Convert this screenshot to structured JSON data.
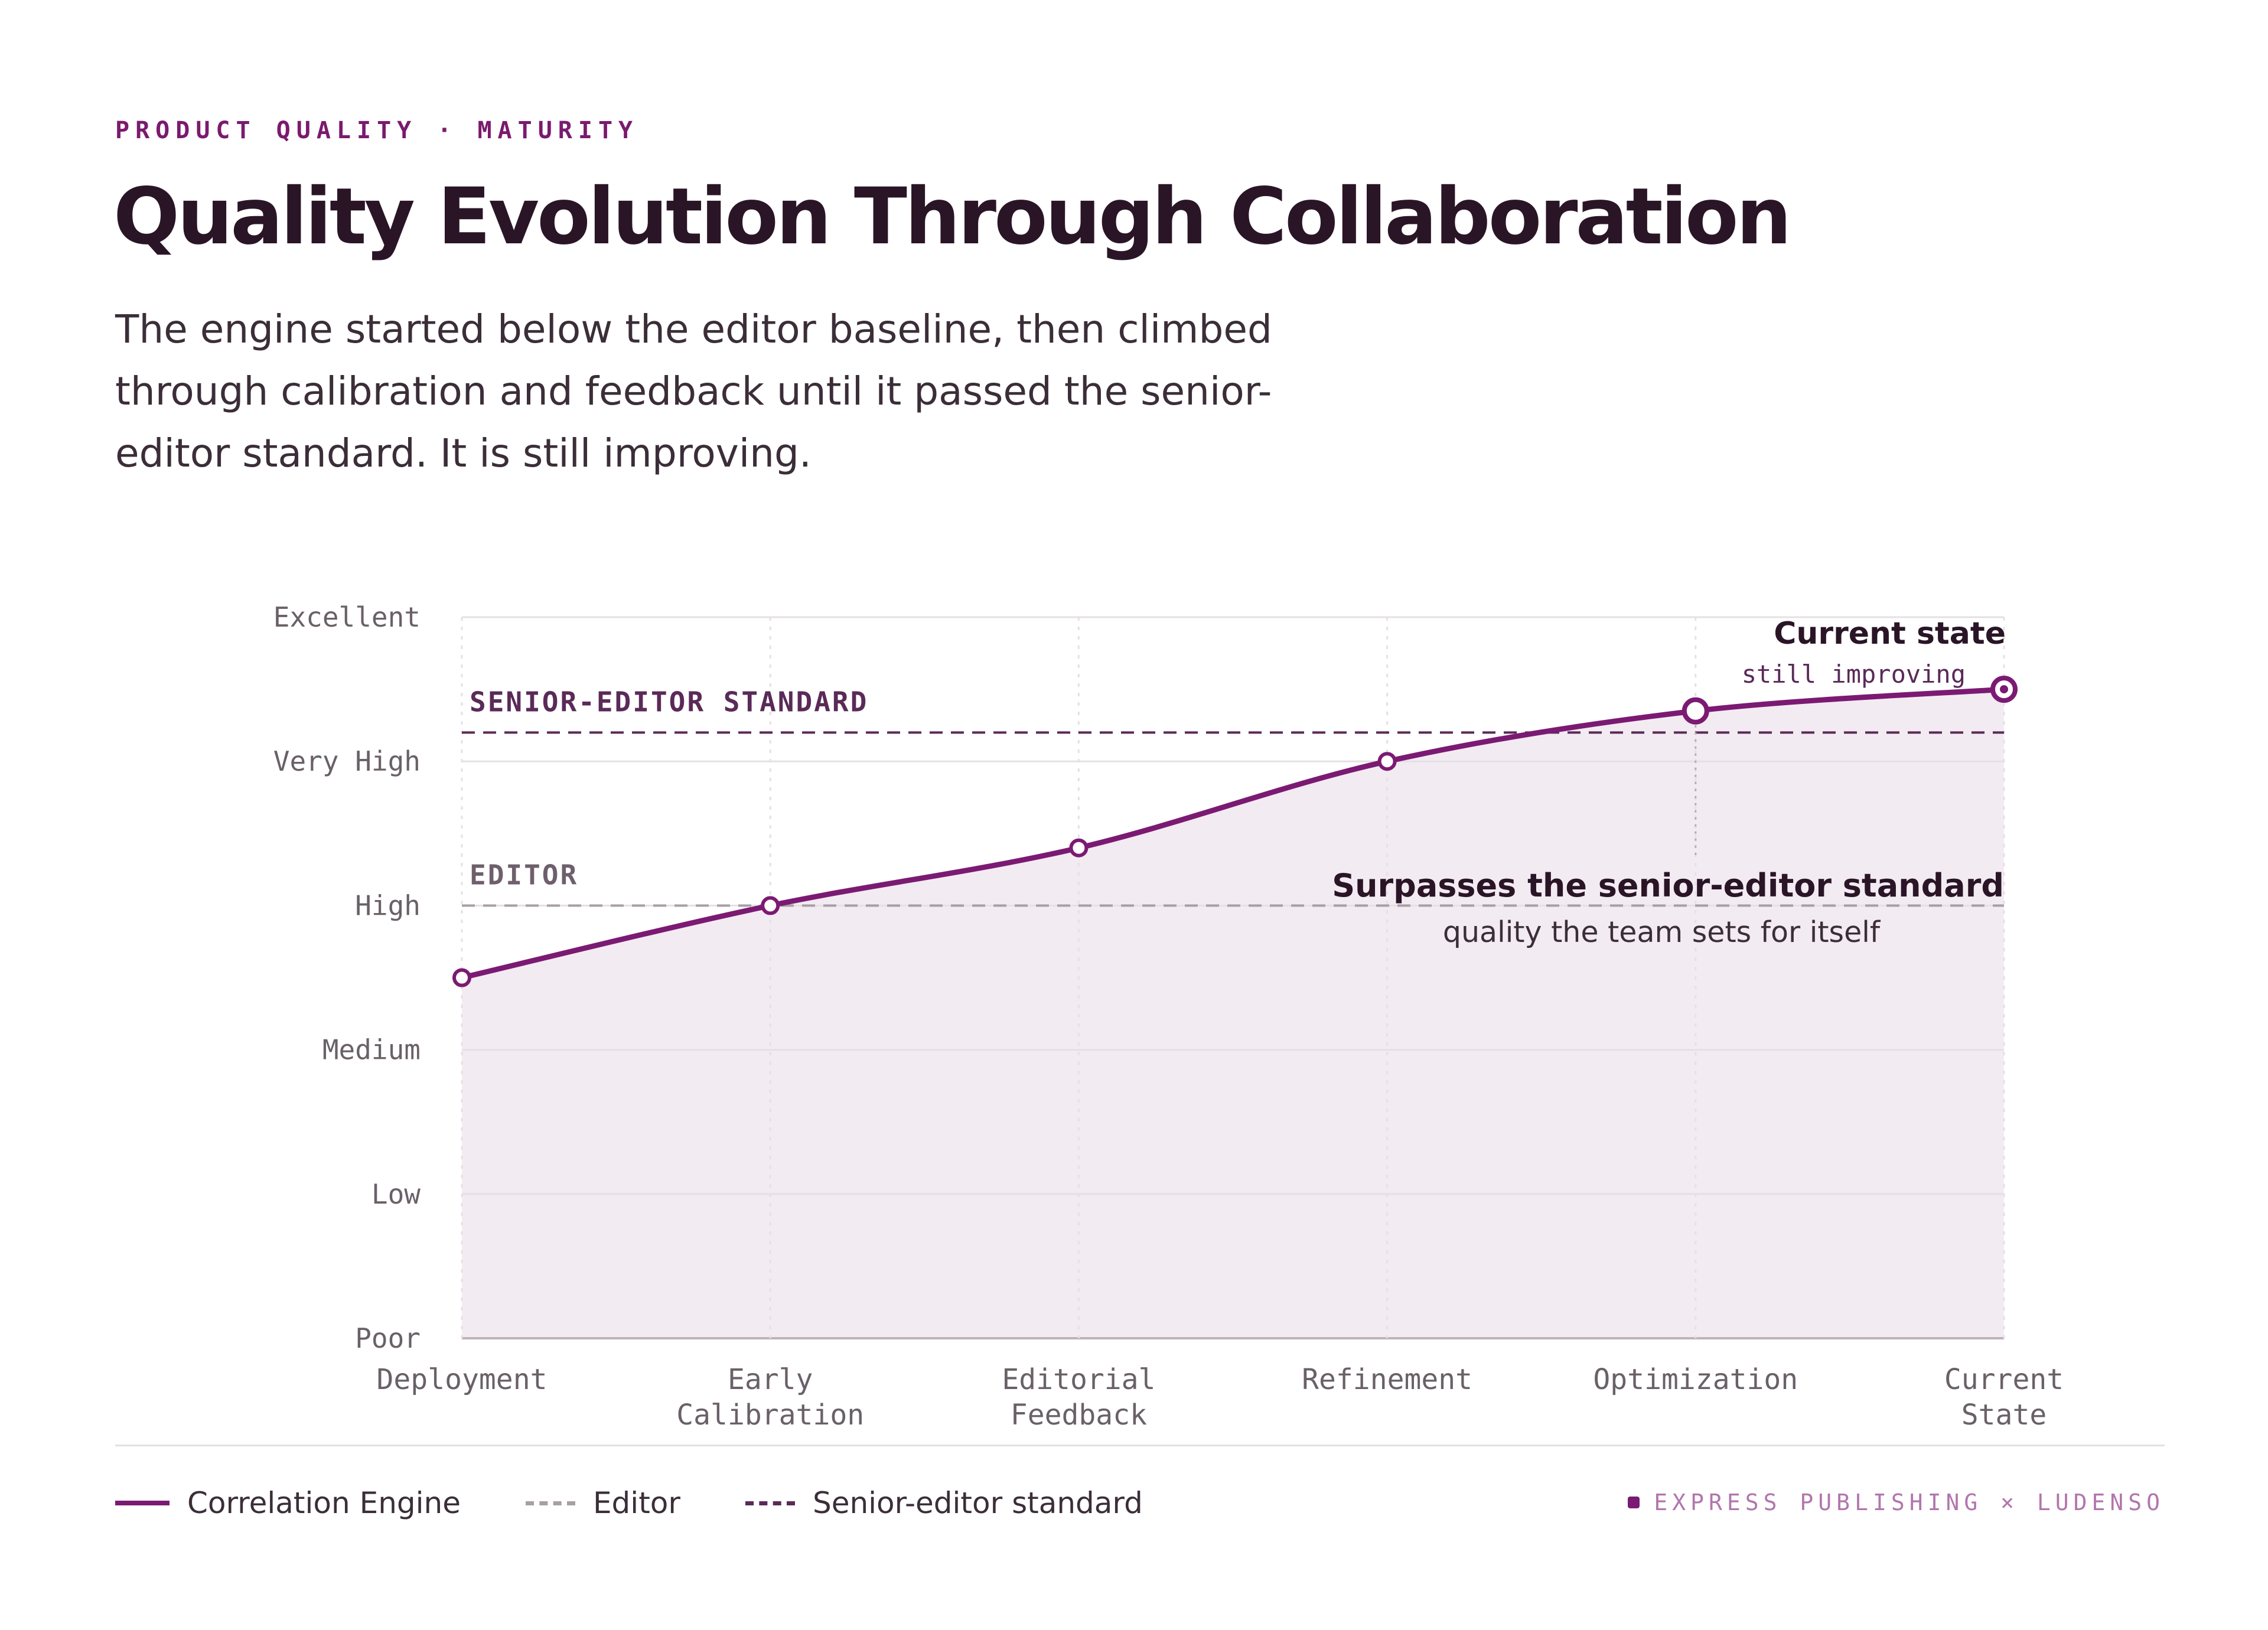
{
  "header": {
    "eyebrow": "PRODUCT QUALITY · MATURITY",
    "title": "Quality Evolution Through Collaboration",
    "subtitle": "The engine started below the editor baseline, then climbed through calibration and feedback until it passed the senior-editor standard. It is still improving."
  },
  "chart_data": {
    "type": "line",
    "categories": [
      "Deployment",
      "Early Calibration",
      "Editorial Feedback",
      "Refinement",
      "Optimization",
      "Current State"
    ],
    "category_lines": [
      [
        "Deployment"
      ],
      [
        "Early",
        "Calibration"
      ],
      [
        "Editorial",
        "Feedback"
      ],
      [
        "Refinement"
      ],
      [
        "Optimization"
      ],
      [
        "Current",
        "State"
      ]
    ],
    "y_ticks": [
      "Poor",
      "Low",
      "Medium",
      "High",
      "Very High",
      "Excellent"
    ],
    "ylim": [
      0,
      5
    ],
    "series": [
      {
        "name": "Correlation Engine",
        "values": [
          2.5,
          3.0,
          3.4,
          4.0,
          4.35,
          4.5
        ],
        "color": "#7b1a73"
      }
    ],
    "reference_lines": [
      {
        "label": "SENIOR-EDITOR STANDARD",
        "legend": "Senior-editor standard",
        "value": 4.2,
        "color": "#5a2a58"
      },
      {
        "label": "EDITOR",
        "legend": "Editor",
        "value": 3.0,
        "color": "#a79fa6"
      }
    ],
    "annotations": [
      {
        "title": "Current state",
        "subtitle": "still improving",
        "category": "Current State"
      },
      {
        "title": "Surpasses the senior-editor standard",
        "subtitle": "quality the team sets for itself",
        "category": "Optimization"
      }
    ],
    "grid": true,
    "area_fill": true,
    "legend_position": "bottom-left"
  },
  "footer": {
    "legend": [
      "Correlation Engine",
      "Editor",
      "Senior-editor standard"
    ],
    "credit": "EXPRESS PUBLISHING × LUDENSO"
  }
}
